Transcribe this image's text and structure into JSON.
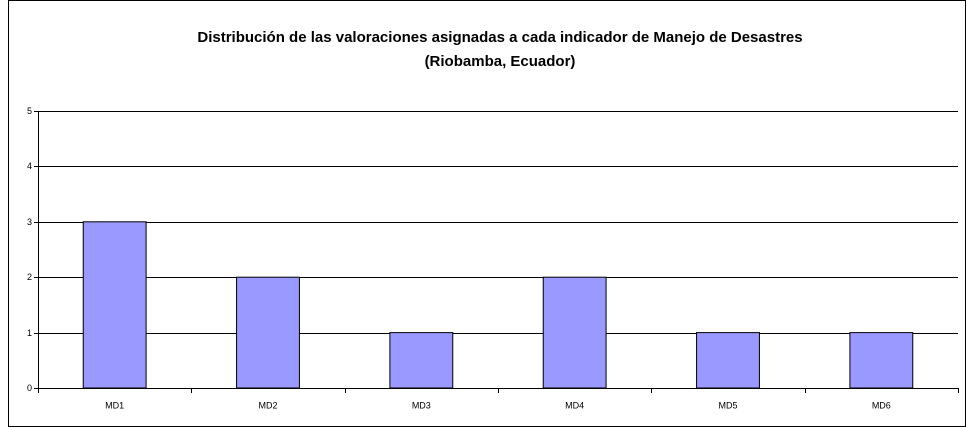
{
  "chart_data": {
    "type": "bar",
    "title": [
      "Distribución de las valoraciones asignadas a cada indicador de Manejo de Desastres",
      "(Riobamba, Ecuador)"
    ],
    "categories": [
      "MD1",
      "MD2",
      "MD3",
      "MD4",
      "MD5",
      "MD6"
    ],
    "values": [
      3,
      2,
      1,
      2,
      1,
      1
    ],
    "color": "#9999ff",
    "ylim": [
      0,
      5
    ],
    "yticks": [
      0,
      1,
      2,
      3,
      4,
      5
    ],
    "grid": true
  }
}
